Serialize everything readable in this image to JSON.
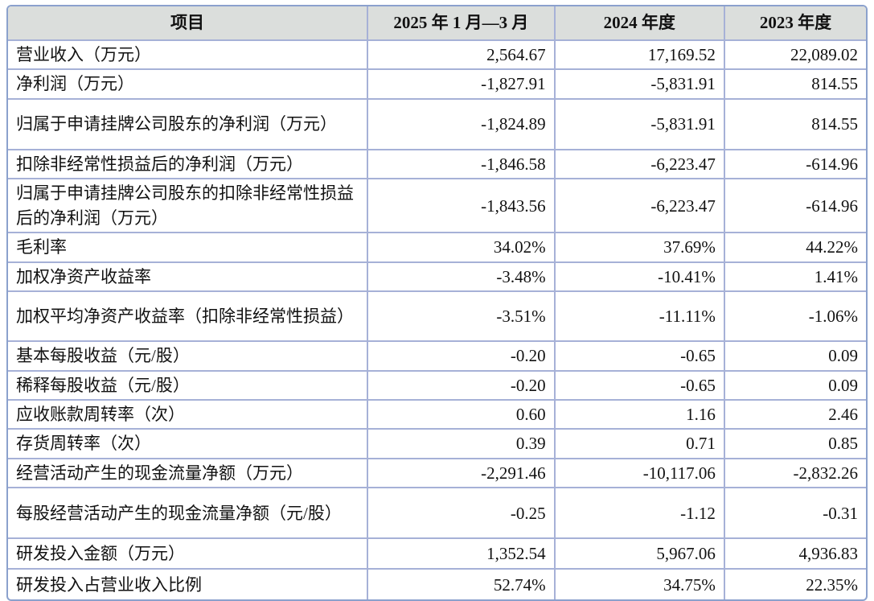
{
  "table": {
    "headers": [
      "项目",
      "2025 年 1 月—3 月",
      "2024 年度",
      "2023 年度"
    ],
    "rows": [
      {
        "label": "营业收入（万元）",
        "values": [
          "2,564.67",
          "17,169.52",
          "22,089.02"
        ]
      },
      {
        "label": "净利润（万元）",
        "values": [
          "-1,827.91",
          "-5,831.91",
          "814.55"
        ]
      },
      {
        "label": "归属于申请挂牌公司股东的净利润（万元）",
        "values": [
          "-1,824.89",
          "-5,831.91",
          "814.55"
        ]
      },
      {
        "label": "扣除非经常性损益后的净利润（万元）",
        "values": [
          "-1,846.58",
          "-6,223.47",
          "-614.96"
        ]
      },
      {
        "label": "归属于申请挂牌公司股东的扣除非经常性损益后的净利润（万元）",
        "values": [
          "-1,843.56",
          "-6,223.47",
          "-614.96"
        ]
      },
      {
        "label": "毛利率",
        "values": [
          "34.02%",
          "37.69%",
          "44.22%"
        ]
      },
      {
        "label": "加权净资产收益率",
        "values": [
          "-3.48%",
          "-10.41%",
          "1.41%"
        ]
      },
      {
        "label": "加权平均净资产收益率（扣除非经常性损益）",
        "values": [
          "-3.51%",
          "-11.11%",
          "-1.06%"
        ]
      },
      {
        "label": "基本每股收益（元/股）",
        "values": [
          "-0.20",
          "-0.65",
          "0.09"
        ]
      },
      {
        "label": "稀释每股收益（元/股）",
        "values": [
          "-0.20",
          "-0.65",
          "0.09"
        ]
      },
      {
        "label": "应收账款周转率（次）",
        "values": [
          "0.60",
          "1.16",
          "2.46"
        ]
      },
      {
        "label": "存货周转率（次）",
        "values": [
          "0.39",
          "0.71",
          "0.85"
        ]
      },
      {
        "label": "经营活动产生的现金流量净额（万元）",
        "values": [
          "-2,291.46",
          "-10,117.06",
          "-2,832.26"
        ]
      },
      {
        "label": "每股经营活动产生的现金流量净额（元/股）",
        "values": [
          "-0.25",
          "-1.12",
          "-0.31"
        ]
      },
      {
        "label": "研发投入金额（万元）",
        "values": [
          "1,352.54",
          "5,967.06",
          "4,936.83"
        ]
      },
      {
        "label": "研发投入占营业收入比例",
        "values": [
          "52.74%",
          "34.75%",
          "22.35%"
        ]
      }
    ],
    "colors": {
      "header_bg": "#dbdedc",
      "grid_border": "#a6b1d7",
      "outer_border": "#8ba1cd",
      "text": "#111111",
      "row_bg": "#ffffff"
    }
  }
}
